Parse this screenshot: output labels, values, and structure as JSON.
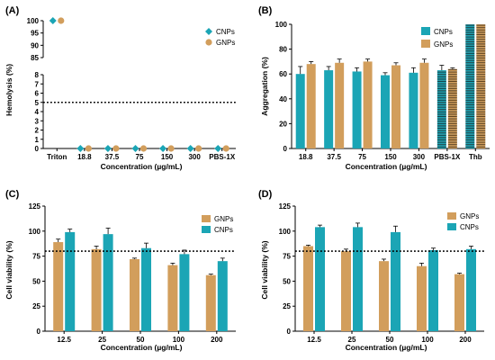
{
  "colors": {
    "cnp": "#1ba5b5",
    "gnp": "#d29e5c"
  },
  "chart_data": [
    {
      "id": "A",
      "panel_label": "(A)",
      "type": "scatter",
      "ylabel": "Hemolysis (%)",
      "xlabel": "Concentration (µg/mL)",
      "categories": [
        "Triton",
        "18.8",
        "37.5",
        "75",
        "150",
        "300",
        "PBS-1X"
      ],
      "y_axis": "broken",
      "ylim_lower": [
        0,
        8
      ],
      "ylim_upper": [
        85,
        100
      ],
      "yticks_lower": [
        0,
        1,
        2,
        3,
        4,
        5,
        6,
        7,
        8
      ],
      "yticks_upper": [
        85,
        90,
        95,
        100
      ],
      "reference_line": 5,
      "legend": "top-right",
      "series": [
        {
          "name": "CNPs",
          "marker": "diamond",
          "color": "cnp",
          "values": [
            100,
            0,
            0,
            0,
            0,
            0,
            0
          ]
        },
        {
          "name": "GNPs",
          "marker": "circle",
          "color": "gnp",
          "values": [
            100,
            0,
            0,
            0,
            0,
            0,
            0
          ]
        }
      ]
    },
    {
      "id": "B",
      "panel_label": "(B)",
      "type": "bar",
      "ylabel": "Aggregation (%)",
      "xlabel": "Concentration (µg/mL)",
      "categories": [
        "18.8",
        "37.5",
        "75",
        "150",
        "300",
        "PBS-1X",
        "Thb"
      ],
      "ylim": [
        0,
        100
      ],
      "yticks": [
        0,
        20,
        40,
        60,
        80,
        100
      ],
      "legend": "top-right",
      "striped_categories": [
        "PBS-1X",
        "Thb"
      ],
      "series": [
        {
          "name": "CNPs",
          "color": "cnp",
          "values": [
            60,
            63,
            62,
            59,
            61,
            63,
            100
          ],
          "errors": [
            6,
            3,
            3,
            2,
            4,
            4,
            0
          ]
        },
        {
          "name": "GNPs",
          "color": "gnp",
          "values": [
            68,
            69,
            70,
            67,
            69,
            64,
            100
          ],
          "errors": [
            2,
            3,
            2,
            2,
            3,
            1,
            0
          ]
        }
      ]
    },
    {
      "id": "C",
      "panel_label": "(C)",
      "type": "bar",
      "ylabel": "Cell viability (%)",
      "xlabel": "Concentration (µg/mL)",
      "categories": [
        "12.5",
        "25",
        "50",
        "100",
        "200"
      ],
      "ylim": [
        0,
        125
      ],
      "yticks": [
        0,
        25,
        50,
        75,
        100,
        125
      ],
      "reference_line": 80,
      "legend": "top-right",
      "series": [
        {
          "name": "GNPs",
          "color": "gnp",
          "values": [
            89,
            82,
            72,
            66,
            56
          ],
          "errors": [
            3,
            3,
            1,
            2,
            1
          ]
        },
        {
          "name": "CNPs",
          "color": "cnp",
          "values": [
            99,
            97,
            83,
            77,
            70
          ],
          "errors": [
            3,
            6,
            5,
            4,
            3
          ]
        }
      ]
    },
    {
      "id": "D",
      "panel_label": "(D)",
      "type": "bar",
      "ylabel": "Cell viability (%)",
      "xlabel": "Concentration (µg/mL)",
      "categories": [
        "12.5",
        "25",
        "50",
        "100",
        "200"
      ],
      "ylim": [
        0,
        125
      ],
      "yticks": [
        0,
        25,
        50,
        75,
        100,
        125
      ],
      "reference_line": 80,
      "legend": "top-right",
      "series": [
        {
          "name": "GNPs",
          "color": "gnp",
          "values": [
            85,
            80,
            70,
            65,
            57
          ],
          "errors": [
            1,
            2,
            2,
            3,
            1
          ]
        },
        {
          "name": "CNPs",
          "color": "cnp",
          "values": [
            104,
            104,
            99,
            81,
            82
          ],
          "errors": [
            2,
            4,
            6,
            2,
            3
          ]
        }
      ]
    }
  ]
}
